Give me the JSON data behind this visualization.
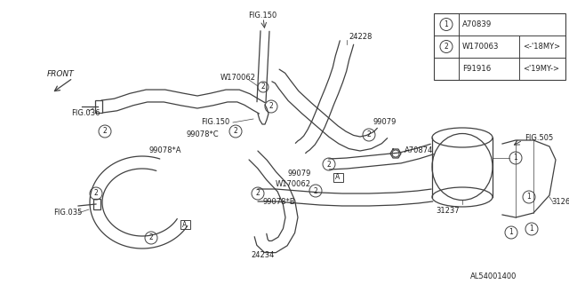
{
  "bg_color": "#ffffff",
  "line_color": "#404040",
  "text_color": "#202020",
  "diagram_code": "AL54001400",
  "fig_w": 6.4,
  "fig_h": 3.2,
  "dpi": 100,
  "xlim": [
    0,
    640
  ],
  "ylim": [
    0,
    320
  ]
}
